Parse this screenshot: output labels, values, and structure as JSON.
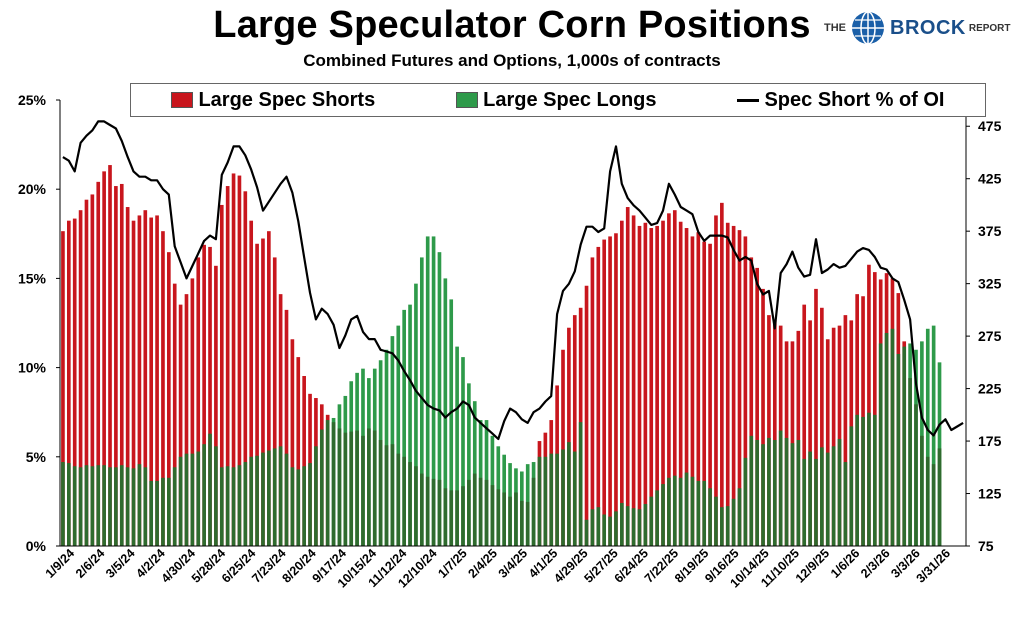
{
  "title": "Large Speculator Corn Positions",
  "subtitle": "Combined Futures and Options, 1,000s of contracts",
  "logo": {
    "the": "THE",
    "brock": "BROCK",
    "report": "REPORT"
  },
  "colors": {
    "shorts": "#c8161d",
    "longs": "#2e9a4a",
    "line": "#000000",
    "overlap": "#2f6b2e"
  },
  "chart_data": {
    "type": "bar",
    "series": [
      {
        "name": "Large Spec Shorts",
        "kind": "bar",
        "axis": "right",
        "values": [
          375,
          385,
          387,
          395,
          405,
          410,
          422,
          432,
          438,
          418,
          420,
          398,
          385,
          390,
          395,
          388,
          390,
          375,
          355,
          325,
          305,
          315,
          330,
          350,
          362,
          360,
          342,
          400,
          418,
          430,
          428,
          413,
          385,
          363,
          368,
          375,
          350,
          315,
          300,
          272,
          255,
          237,
          220,
          216,
          210,
          200,
          193,
          187,
          183,
          184,
          185,
          180,
          187,
          185,
          176,
          171,
          172,
          163,
          160,
          155,
          151,
          144,
          141,
          139,
          138,
          130,
          128,
          128,
          132,
          138,
          144,
          140,
          138,
          133,
          129,
          126,
          122,
          126,
          118,
          117,
          140,
          175,
          183,
          195,
          228,
          262,
          283,
          295,
          302,
          323,
          350,
          360,
          367,
          370,
          373,
          385,
          398,
          390,
          380,
          383,
          378,
          380,
          385,
          392,
          395,
          384,
          378,
          370,
          374,
          365,
          363,
          390,
          402,
          383,
          380,
          376,
          370,
          350,
          340,
          320,
          295,
          290,
          285,
          270,
          270,
          280,
          305,
          290,
          320,
          302,
          272,
          283,
          285,
          295,
          290,
          315,
          313,
          343,
          336,
          329,
          335,
          330,
          316,
          270,
          235,
          210,
          180,
          160,
          153,
          168,
          155,
          163,
          180,
          158
        ]
      },
      {
        "name": "Large Spec Longs",
        "kind": "bar",
        "axis": "right",
        "values": [
          155,
          154,
          151,
          150,
          152,
          151,
          152,
          152,
          150,
          150,
          152,
          150,
          149,
          153,
          150,
          137,
          137,
          140,
          140,
          150,
          160,
          163,
          163,
          165,
          172,
          182,
          170,
          150,
          151,
          150,
          152,
          155,
          160,
          161,
          164,
          166,
          168,
          170,
          163,
          150,
          148,
          151,
          154,
          170,
          186,
          195,
          197,
          210,
          218,
          232,
          240,
          244,
          235,
          244,
          252,
          262,
          275,
          285,
          300,
          305,
          325,
          350,
          370,
          370,
          355,
          330,
          310,
          265,
          255,
          230,
          213,
          195,
          195,
          180,
          170,
          162,
          154,
          149,
          146,
          153,
          155,
          160,
          160,
          163,
          163,
          167,
          174,
          165,
          193,
          100,
          110,
          112,
          105,
          103,
          108,
          116,
          113,
          111,
          110,
          115,
          122,
          128,
          134,
          140,
          142,
          140,
          145,
          141,
          137,
          137,
          130,
          122,
          112,
          113,
          120,
          130,
          159,
          180,
          176,
          172,
          178,
          176,
          185,
          178,
          173,
          176,
          158,
          165,
          158,
          169,
          164,
          170,
          177,
          155,
          189,
          200,
          198,
          202,
          200,
          268,
          278,
          282,
          258,
          265,
          268,
          262,
          270,
          282,
          285,
          250
        ]
      },
      {
        "name": "Spec Short % of OI",
        "kind": "line",
        "axis": "left",
        "values": [
          21.8,
          21.6,
          21.0,
          22.6,
          23.0,
          23.3,
          23.8,
          23.8,
          23.6,
          23.4,
          22.7,
          21.8,
          21.0,
          20.7,
          20.7,
          20.5,
          20.5,
          20.0,
          19.7,
          16.8,
          15.9,
          15.0,
          15.7,
          16.4,
          17.1,
          17.4,
          17.2,
          20.8,
          21.5,
          22.4,
          22.4,
          21.9,
          21.1,
          20.1,
          18.8,
          19.3,
          19.8,
          20.3,
          20.7,
          19.8,
          18.2,
          16.2,
          14.2,
          12.7,
          13.3,
          13.0,
          12.4,
          11.1,
          11.8,
          12.7,
          12.9,
          12.0,
          11.6,
          11.6,
          11.0,
          10.9,
          10.8,
          10.4,
          9.8,
          9.3,
          8.7,
          8.3,
          7.9,
          7.7,
          7.6,
          7.2,
          7.5,
          7.7,
          8.1,
          7.9,
          7.2,
          6.9,
          6.6,
          6.3,
          6.0,
          7.0,
          7.7,
          7.5,
          7.1,
          6.9,
          7.5,
          7.7,
          8.1,
          8.4,
          13.0,
          14.3,
          14.7,
          15.4,
          16.9,
          17.9,
          17.9,
          17.6,
          17.8,
          21.0,
          22.4,
          20.3,
          19.5,
          19.1,
          18.8,
          18.4,
          18.0,
          18.1,
          18.8,
          20.3,
          19.7,
          19.0,
          18.8,
          18.6,
          17.6,
          17.1,
          17.4,
          17.4,
          17.4,
          17.3,
          16.6,
          16.0,
          16.2,
          16.0,
          14.7,
          14.1,
          14.3,
          12.2,
          15.3,
          15.8,
          16.5,
          15.6,
          15.1,
          15.2,
          17.2,
          15.3,
          15.5,
          15.8,
          15.6,
          15.7,
          16.1,
          16.5,
          16.7,
          16.6,
          16.2,
          15.6,
          15.5,
          15.0,
          14.8,
          13.8,
          12.7,
          9.1,
          7.2,
          6.5,
          6.2,
          6.8,
          7.1,
          6.5,
          6.7,
          6.9
        ]
      }
    ],
    "xlabels": [
      "1/9/24",
      "2/6/24",
      "3/5/24",
      "4/2/24",
      "4/30/24",
      "5/28/24",
      "6/25/24",
      "7/23/24",
      "8/20/24",
      "9/17/24",
      "10/15/24",
      "11/12/24",
      "12/10/24",
      "1/7/25",
      "2/4/25",
      "3/4/25",
      "4/1/25",
      "4/29/25",
      "5/27/25",
      "6/24/25",
      "7/22/25",
      "8/19/25",
      "9/16/25",
      "10/14/25",
      "11/10/25",
      "12/9/25",
      "1/6/26",
      "2/3/26",
      "3/3/26",
      "3/31/26"
    ],
    "left_axis": {
      "ticks": [
        "0%",
        "5%",
        "10%",
        "15%",
        "20%",
        "25%"
      ],
      "range": [
        0,
        25
      ]
    },
    "right_axis": {
      "ticks": [
        "75",
        "125",
        "175",
        "225",
        "275",
        "325",
        "375",
        "425",
        "475"
      ],
      "range": [
        75,
        500
      ]
    },
    "legend_placement": "top",
    "grid": false
  }
}
